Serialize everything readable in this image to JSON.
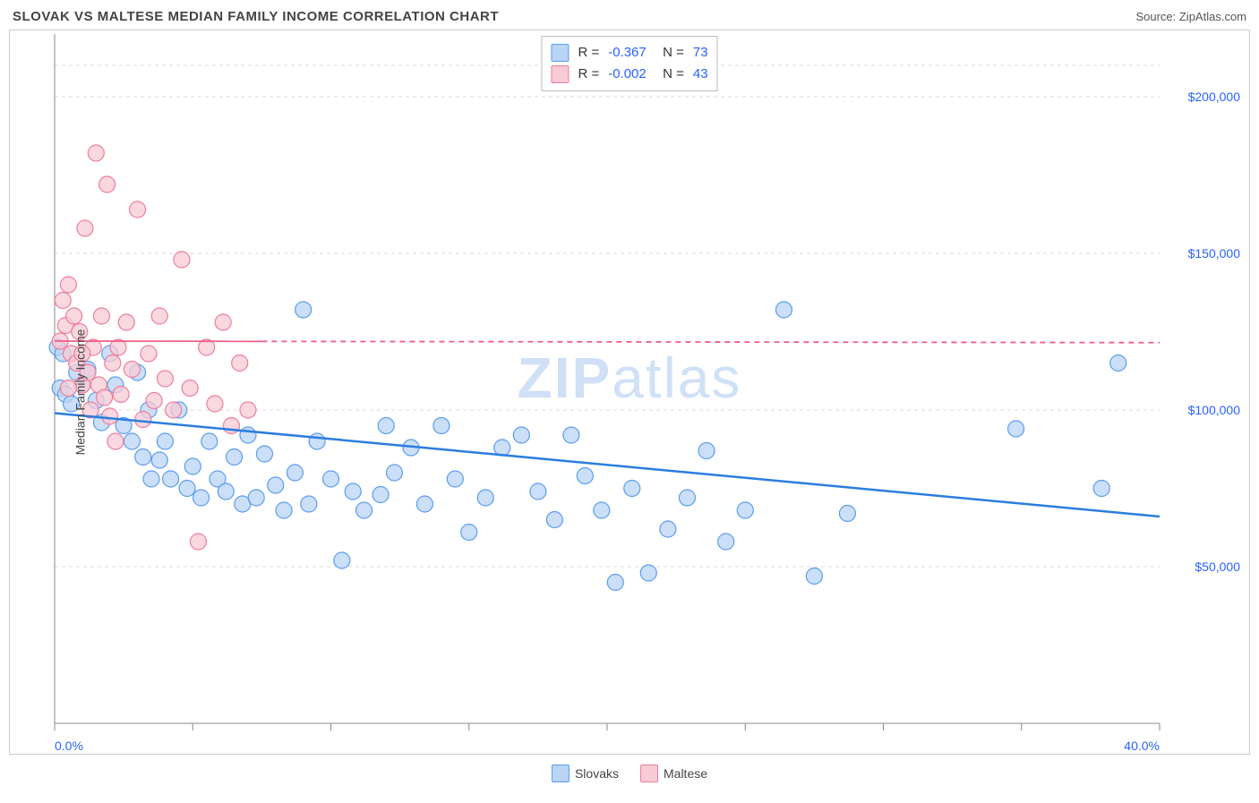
{
  "title": "SLOVAK VS MALTESE MEDIAN FAMILY INCOME CORRELATION CHART",
  "source_label": "Source: ZipAtlas.com",
  "watermark": {
    "zip": "ZIP",
    "atlas": "atlas"
  },
  "ylabel": "Median Family Income",
  "chart": {
    "type": "scatter",
    "xlim": [
      0,
      40
    ],
    "ylim": [
      0,
      220000
    ],
    "x_ticks_major": [
      0,
      5,
      10,
      15,
      20,
      25,
      30,
      35,
      40
    ],
    "x_tick_labels": {
      "0": "0.0%",
      "40": "40.0%"
    },
    "y_gridlines": [
      50000,
      100000,
      150000,
      200000,
      210000
    ],
    "y_tick_labels": [
      "$50,000",
      "$100,000",
      "$150,000",
      "$200,000"
    ],
    "y_tick_values": [
      50000,
      100000,
      150000,
      200000
    ],
    "grid_color": "#d9d9d9",
    "grid_dash": "4 4",
    "background_color": "#ffffff",
    "marker_radius": 9,
    "marker_stroke_width": 1.2,
    "axis_label_color": "#2962ff",
    "axis_label_fontsize": 14,
    "series": {
      "slovaks": {
        "label": "Slovaks",
        "fill": "#b9d4f5",
        "stroke": "#5a9cf0",
        "R": "-0.367",
        "N": "73",
        "trend": {
          "x1": 0,
          "y1": 99000,
          "x2": 40,
          "y2": 66000,
          "color": "#2a7de1",
          "width": 2.5,
          "dash_after_x": null
        },
        "points": [
          [
            0.1,
            120000
          ],
          [
            0.2,
            107000
          ],
          [
            0.3,
            118000
          ],
          [
            0.4,
            105000
          ],
          [
            0.6,
            102000
          ],
          [
            0.8,
            112000
          ],
          [
            1.0,
            108000
          ],
          [
            1.2,
            113000
          ],
          [
            1.5,
            103000
          ],
          [
            1.7,
            96000
          ],
          [
            2.0,
            118000
          ],
          [
            2.2,
            108000
          ],
          [
            2.5,
            95000
          ],
          [
            2.8,
            90000
          ],
          [
            3.0,
            112000
          ],
          [
            3.2,
            85000
          ],
          [
            3.4,
            100000
          ],
          [
            3.5,
            78000
          ],
          [
            3.8,
            84000
          ],
          [
            4.0,
            90000
          ],
          [
            4.2,
            78000
          ],
          [
            4.5,
            100000
          ],
          [
            4.8,
            75000
          ],
          [
            5.0,
            82000
          ],
          [
            5.3,
            72000
          ],
          [
            5.6,
            90000
          ],
          [
            5.9,
            78000
          ],
          [
            6.2,
            74000
          ],
          [
            6.5,
            85000
          ],
          [
            6.8,
            70000
          ],
          [
            7.0,
            92000
          ],
          [
            7.3,
            72000
          ],
          [
            7.6,
            86000
          ],
          [
            8.0,
            76000
          ],
          [
            8.3,
            68000
          ],
          [
            8.7,
            80000
          ],
          [
            9.0,
            132000
          ],
          [
            9.2,
            70000
          ],
          [
            9.5,
            90000
          ],
          [
            10.0,
            78000
          ],
          [
            10.4,
            52000
          ],
          [
            10.8,
            74000
          ],
          [
            11.2,
            68000
          ],
          [
            11.8,
            73000
          ],
          [
            12.3,
            80000
          ],
          [
            12.9,
            88000
          ],
          [
            13.4,
            70000
          ],
          [
            14.0,
            95000
          ],
          [
            14.5,
            78000
          ],
          [
            15.0,
            61000
          ],
          [
            15.6,
            72000
          ],
          [
            16.2,
            88000
          ],
          [
            16.9,
            92000
          ],
          [
            17.5,
            74000
          ],
          [
            18.1,
            65000
          ],
          [
            18.7,
            92000
          ],
          [
            19.2,
            79000
          ],
          [
            19.8,
            68000
          ],
          [
            20.3,
            45000
          ],
          [
            20.9,
            75000
          ],
          [
            21.5,
            48000
          ],
          [
            22.2,
            62000
          ],
          [
            22.9,
            72000
          ],
          [
            23.6,
            87000
          ],
          [
            24.3,
            58000
          ],
          [
            25.0,
            68000
          ],
          [
            26.4,
            132000
          ],
          [
            27.5,
            47000
          ],
          [
            28.7,
            67000
          ],
          [
            34.8,
            94000
          ],
          [
            37.9,
            75000
          ],
          [
            38.5,
            115000
          ],
          [
            12.0,
            95000
          ]
        ]
      },
      "maltese": {
        "label": "Maltese",
        "fill": "#f8cbd6",
        "stroke": "#ef7c9a",
        "R": "-0.002",
        "N": "43",
        "trend": {
          "x1": 0,
          "y1": 122000,
          "x2": 40,
          "y2": 121500,
          "color": "#ef5d85",
          "width": 1.8,
          "dash_after_x": 7.5
        },
        "points": [
          [
            0.2,
            122000
          ],
          [
            0.3,
            135000
          ],
          [
            0.4,
            127000
          ],
          [
            0.5,
            140000
          ],
          [
            0.6,
            118000
          ],
          [
            0.7,
            130000
          ],
          [
            0.8,
            115000
          ],
          [
            0.9,
            125000
          ],
          [
            1.0,
            108000
          ],
          [
            1.1,
            158000
          ],
          [
            1.2,
            112000
          ],
          [
            1.3,
            100000
          ],
          [
            1.4,
            120000
          ],
          [
            1.5,
            182000
          ],
          [
            1.6,
            108000
          ],
          [
            1.7,
            130000
          ],
          [
            1.8,
            104000
          ],
          [
            1.9,
            172000
          ],
          [
            2.0,
            98000
          ],
          [
            2.1,
            115000
          ],
          [
            2.2,
            90000
          ],
          [
            2.3,
            120000
          ],
          [
            2.4,
            105000
          ],
          [
            2.6,
            128000
          ],
          [
            2.8,
            113000
          ],
          [
            3.0,
            164000
          ],
          [
            3.2,
            97000
          ],
          [
            3.4,
            118000
          ],
          [
            3.6,
            103000
          ],
          [
            3.8,
            130000
          ],
          [
            4.0,
            110000
          ],
          [
            4.3,
            100000
          ],
          [
            4.6,
            148000
          ],
          [
            4.9,
            107000
          ],
          [
            5.2,
            58000
          ],
          [
            5.5,
            120000
          ],
          [
            5.8,
            102000
          ],
          [
            6.1,
            128000
          ],
          [
            6.4,
            95000
          ],
          [
            6.7,
            115000
          ],
          [
            7.0,
            100000
          ],
          [
            0.5,
            107000
          ],
          [
            1.0,
            118000
          ]
        ]
      }
    }
  },
  "legend_bottom": [
    {
      "key": "slovaks",
      "label": "Slovaks"
    },
    {
      "key": "maltese",
      "label": "Maltese"
    }
  ]
}
